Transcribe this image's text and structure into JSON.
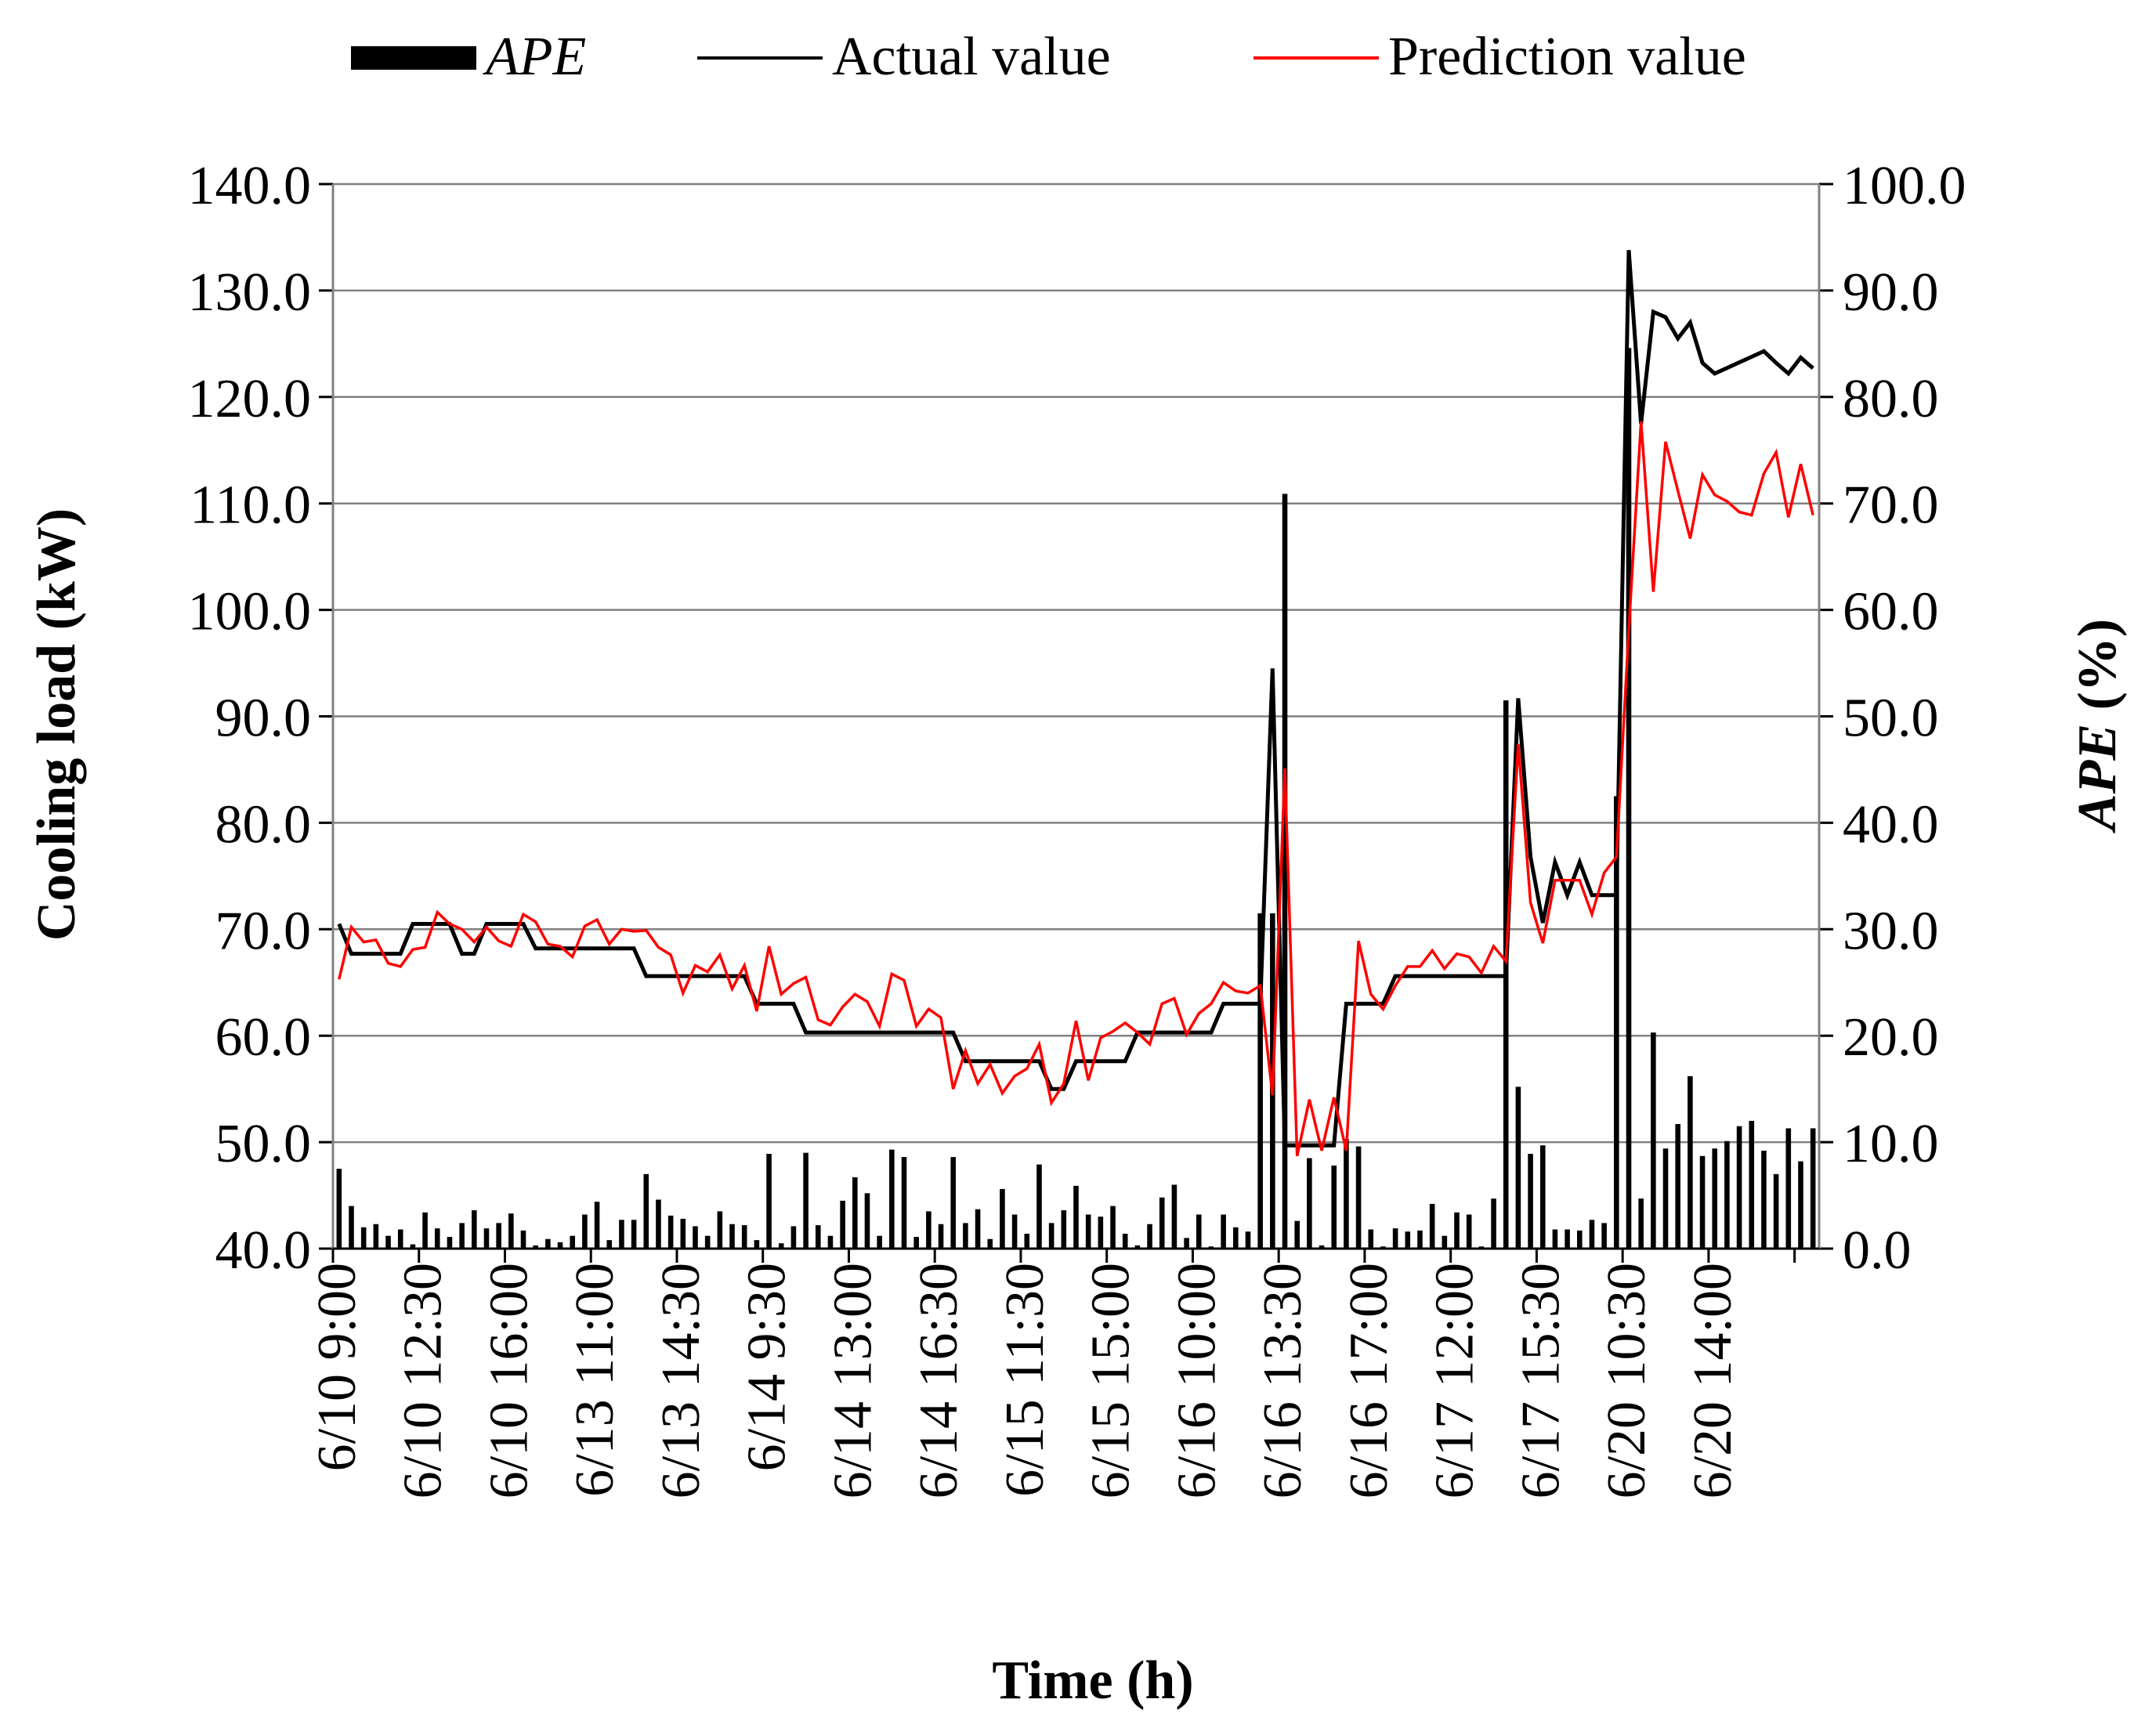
{
  "chart_data": {
    "type": "bar+line",
    "xlabel": "Time (h)",
    "ylabel_left": "Cooling load (kW)",
    "ylabel_right": "APE (%)",
    "ylim_left": [
      40,
      140
    ],
    "ylim_right": [
      0,
      100
    ],
    "left_ticks": [
      "40.0",
      "50.0",
      "60.0",
      "70.0",
      "80.0",
      "90.0",
      "100.0",
      "110.0",
      "120.0",
      "130.0",
      "140.0"
    ],
    "right_ticks": [
      "0.0",
      "10.0",
      "20.0",
      "30.0",
      "40.0",
      "50.0",
      "60.0",
      "70.0",
      "80.0",
      "90.0",
      "100.0"
    ],
    "x_tick_labels": [
      "6/10 9:00",
      "6/10 12:30",
      "6/10 16:00",
      "6/13 11:00",
      "6/13 14:30",
      "6/14 9:30",
      "6/14 13:00",
      "6/14 16:30",
      "6/15 11:30",
      "6/15 15:00",
      "6/16 10:00",
      "6/16 13:30",
      "6/16 17:00",
      "6/17 12:00",
      "6/17 15:30",
      "6/20 10:30",
      "6/20 14:00"
    ],
    "x_tick_every": 7,
    "grid": true,
    "legend_position": "top",
    "colors": {
      "ape": "#000000",
      "actual": "#000000",
      "prediction": "#ff0000",
      "grid": "#808080"
    },
    "series": [
      {
        "name": "APE",
        "type": "bar",
        "axis": "right",
        "values": [
          7.5,
          4.0,
          2.0,
          2.3,
          1.2,
          1.8,
          0.4,
          3.4,
          1.9,
          1.1,
          2.4,
          3.6,
          1.9,
          2.4,
          3.3,
          1.7,
          0.3,
          0.9,
          0.6,
          1.2,
          3.2,
          4.4,
          0.8,
          2.7,
          2.7,
          7.0,
          4.6,
          3.1,
          2.8,
          2.1,
          1.2,
          3.5,
          2.3,
          2.2,
          0.8,
          8.9,
          0.5,
          2.1,
          9.0,
          2.2,
          1.2,
          4.5,
          6.7,
          5.2,
          1.2,
          9.3,
          8.6,
          1.1,
          3.5,
          2.3,
          8.6,
          2.4,
          3.7,
          0.9,
          5.6,
          3.2,
          1.4,
          7.9,
          2.4,
          3.6,
          5.9,
          3.2,
          3.0,
          4.0,
          1.4,
          0.3,
          2.3,
          4.8,
          6.0,
          1.0,
          3.2,
          0.2,
          3.2,
          2.0,
          1.6,
          31.5,
          31.5,
          70.9,
          2.6,
          8.5,
          0.3,
          7.8,
          10.3,
          9.6,
          1.8,
          0.2,
          1.9,
          1.6,
          1.7,
          4.2,
          1.2,
          3.4,
          3.2,
          0.2,
          4.7,
          51.5,
          15.2,
          8.9,
          9.7,
          1.8,
          1.8,
          1.7,
          2.7,
          2.4,
          42.5,
          84.6,
          4.7,
          20.3,
          9.4,
          11.7,
          16.2,
          8.7,
          9.4,
          10.1,
          11.5,
          12.0,
          9.2,
          7.0,
          11.3,
          8.2,
          11.3
        ]
      },
      {
        "name": "Actual value",
        "type": "line",
        "axis": "left",
        "values": [
          70.5,
          67.7,
          67.7,
          67.7,
          67.7,
          67.7,
          70.5,
          70.5,
          70.5,
          70.5,
          67.7,
          67.7,
          70.5,
          70.5,
          70.5,
          70.5,
          68.2,
          68.2,
          68.2,
          68.2,
          68.2,
          68.2,
          68.2,
          68.2,
          68.2,
          65.6,
          65.6,
          65.6,
          65.6,
          65.6,
          65.6,
          65.6,
          65.6,
          65.6,
          63.0,
          63.0,
          63.0,
          63.0,
          60.3,
          60.3,
          60.3,
          60.3,
          60.3,
          60.3,
          60.3,
          60.3,
          60.3,
          60.3,
          60.3,
          60.3,
          60.3,
          57.6,
          57.6,
          57.6,
          57.6,
          57.6,
          57.6,
          57.6,
          55.0,
          55.0,
          57.6,
          57.6,
          57.6,
          57.6,
          57.6,
          60.3,
          60.3,
          60.3,
          60.3,
          60.3,
          60.3,
          60.3,
          63.0,
          63.0,
          63.0,
          63.0,
          94.5,
          49.7,
          49.7,
          49.7,
          49.7,
          49.7,
          63.0,
          63.0,
          63.0,
          63.0,
          65.6,
          65.6,
          65.6,
          65.6,
          65.6,
          65.6,
          65.6,
          65.6,
          65.6,
          65.6,
          91.7,
          76.8,
          70.6,
          76.3,
          73.2,
          76.3,
          73.2,
          73.2,
          73.2,
          133.8,
          117.5,
          128.0,
          127.5,
          125.5,
          127.0,
          123.2,
          122.2,
          null,
          null,
          null,
          124.3,
          123.2,
          122.2,
          123.7,
          122.7
        ]
      },
      {
        "name": "Prediction value",
        "type": "line",
        "axis": "left",
        "values": [
          65.3,
          70.2,
          68.8,
          69.0,
          66.8,
          66.5,
          68.1,
          68.3,
          71.6,
          70.5,
          70.0,
          68.8,
          70.2,
          68.9,
          68.4,
          71.4,
          70.7,
          68.6,
          68.4,
          67.4,
          70.3,
          70.9,
          68.6,
          70.0,
          69.8,
          69.9,
          68.3,
          67.6,
          64.0,
          66.6,
          66.0,
          67.6,
          64.4,
          66.6,
          62.3,
          68.4,
          63.9,
          64.9,
          65.5,
          61.5,
          61.0,
          62.7,
          63.9,
          63.2,
          60.9,
          65.8,
          65.2,
          60.9,
          62.5,
          61.7,
          55.0,
          58.6,
          55.5,
          57.3,
          54.6,
          56.2,
          56.9,
          59.2,
          53.7,
          55.5,
          61.4,
          55.8,
          59.8,
          60.4,
          61.2,
          60.3,
          59.2,
          63.0,
          63.5,
          60.1,
          62.1,
          63.0,
          65.0,
          64.2,
          64.0,
          64.7,
          54.4,
          85.1,
          48.7,
          54.0,
          49.2,
          54.2,
          49.2,
          68.9,
          63.9,
          62.5,
          64.7,
          66.5,
          66.5,
          68.0,
          66.3,
          67.7,
          67.4,
          65.9,
          68.4,
          67.0,
          87.4,
          72.5,
          68.7,
          74.6,
          74.6,
          74.6,
          71.4,
          75.3,
          76.8,
          98.1,
          117.7,
          101.7,
          115.8,
          111.2,
          106.7,
          112.7,
          110.8,
          110.2,
          109.2,
          108.9,
          112.8,
          114.8,
          108.7,
          113.7,
          108.9
        ]
      }
    ]
  }
}
